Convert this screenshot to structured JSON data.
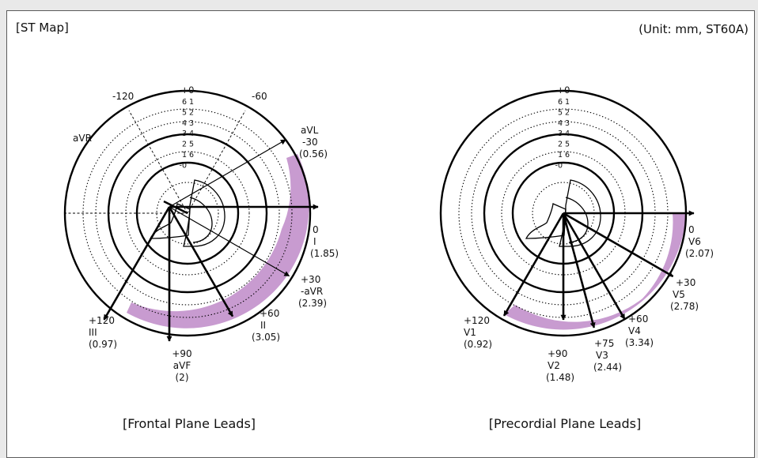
{
  "map_title": "[ST Map]",
  "units_note": "(Unit: mm, ST60A)",
  "colors": {
    "fill": "#c89bd0",
    "line": "#000000",
    "background": "#ffffff"
  },
  "scale_labels": {
    "left_column": [
      "6",
      "5",
      "4",
      "3",
      "2",
      "1",
      "-0"
    ],
    "right_column": [
      "1",
      "2",
      "3",
      "4",
      "5",
      "6"
    ],
    "top": "+0"
  },
  "frontal": {
    "caption": "[Frontal Plane Leads]",
    "angle_labels": {
      "minus120": "-120",
      "minus60": "-60"
    },
    "leads": [
      {
        "lead": "aVR",
        "angle": "",
        "value": ""
      },
      {
        "lead": "aVL",
        "angle": "-30",
        "value": "(0.56)"
      },
      {
        "lead": "I",
        "angle": "0",
        "value": "(1.85)"
      },
      {
        "lead": "-aVR",
        "angle": "+30",
        "value": "(2.39)"
      },
      {
        "lead": "II",
        "angle": "+60",
        "value": "(3.05)"
      },
      {
        "lead": "aVF",
        "angle": "+90",
        "value": "(2)"
      },
      {
        "lead": "III",
        "angle": "+120",
        "value": "(0.97)"
      }
    ],
    "st_values": [
      {
        "lead": "aVL",
        "angle_deg": -30,
        "st_mm": 0.56
      },
      {
        "lead": "I",
        "angle_deg": 0,
        "st_mm": 1.85
      },
      {
        "lead": "-aVR",
        "angle_deg": 30,
        "st_mm": 2.39
      },
      {
        "lead": "II",
        "angle_deg": 60,
        "st_mm": 3.05
      },
      {
        "lead": "aVF",
        "angle_deg": 90,
        "st_mm": 2
      },
      {
        "lead": "III",
        "angle_deg": 120,
        "st_mm": 0.97
      }
    ]
  },
  "precordial": {
    "caption": "[Precordial Plane Leads]",
    "leads": [
      {
        "lead": "V6",
        "angle": "0",
        "value": "(2.07)"
      },
      {
        "lead": "V5",
        "angle": "+30",
        "value": "(2.78)"
      },
      {
        "lead": "V4",
        "angle": "+60",
        "value": "(3.34)"
      },
      {
        "lead": "V3",
        "angle": "+75",
        "value": "(2.44)"
      },
      {
        "lead": "V2",
        "angle": "+90",
        "value": "(1.48)"
      },
      {
        "lead": "V1",
        "angle": "+120",
        "value": "(0.92)"
      }
    ],
    "st_values": [
      {
        "lead": "V6",
        "angle_deg": 0,
        "st_mm": 2.07
      },
      {
        "lead": "V5",
        "angle_deg": 30,
        "st_mm": 2.78
      },
      {
        "lead": "V4",
        "angle_deg": 60,
        "st_mm": 3.34
      },
      {
        "lead": "V3",
        "angle_deg": 75,
        "st_mm": 2.44
      },
      {
        "lead": "V2",
        "angle_deg": 90,
        "st_mm": 1.48
      },
      {
        "lead": "V1",
        "angle_deg": 120,
        "st_mm": 0.92
      }
    ]
  }
}
